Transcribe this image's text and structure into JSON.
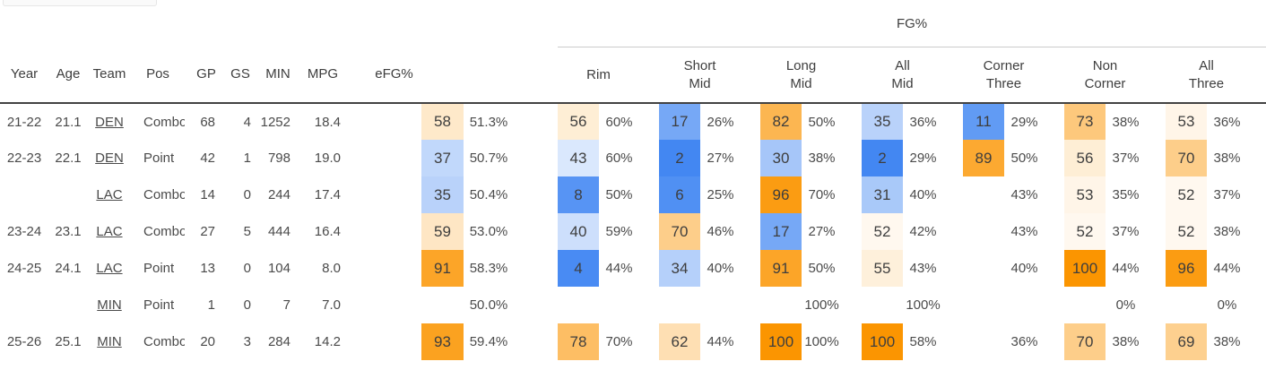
{
  "page": {
    "partial_tab": ""
  },
  "table": {
    "group_header": "FG%",
    "columns": [
      "Year",
      "Age",
      "Team",
      "Pos",
      "GP",
      "GS",
      "MIN",
      "MPG",
      "eFG%"
    ],
    "fg_columns": [
      "Rim",
      "Short\nMid",
      "Long\nMid",
      "All\nMid",
      "Corner\nThree",
      "Non\nCorner",
      "All\nThree"
    ],
    "colors": {
      "percentile_high": "#fb9501",
      "percentile_low": "#3c83f2",
      "percentile_mid": "#ffffff",
      "header_border": "#424242",
      "fg_underline": "#cccccc"
    },
    "rows": [
      {
        "year": "21-22",
        "age": "21.1",
        "team": "DEN",
        "pos": "Combo",
        "gp": "68",
        "gs": "4",
        "min": "1252",
        "mpg": "18.4",
        "efg_pct": 58,
        "efg_val": "51.3%",
        "fg": [
          {
            "pct": 56,
            "val": "60%"
          },
          {
            "pct": 17,
            "val": "26%"
          },
          {
            "pct": 82,
            "val": "50%"
          },
          {
            "pct": 35,
            "val": "36%"
          },
          {
            "pct": 11,
            "val": "29%"
          },
          {
            "pct": 73,
            "val": "38%"
          },
          {
            "pct": 53,
            "val": "36%"
          }
        ]
      },
      {
        "year": "22-23",
        "age": "22.1",
        "team": "DEN",
        "pos": "Point",
        "gp": "42",
        "gs": "1",
        "min": "798",
        "mpg": "19.0",
        "efg_pct": 37,
        "efg_val": "50.7%",
        "fg": [
          {
            "pct": 43,
            "val": "60%"
          },
          {
            "pct": 2,
            "val": "27%"
          },
          {
            "pct": 30,
            "val": "38%"
          },
          {
            "pct": 2,
            "val": "29%"
          },
          {
            "pct": 89,
            "val": "50%"
          },
          {
            "pct": 56,
            "val": "37%"
          },
          {
            "pct": 70,
            "val": "38%"
          }
        ]
      },
      {
        "year": "",
        "age": "",
        "team": "LAC",
        "pos": "Combo",
        "gp": "14",
        "gs": "0",
        "min": "244",
        "mpg": "17.4",
        "efg_pct": 35,
        "efg_val": "50.4%",
        "fg": [
          {
            "pct": 8,
            "val": "50%"
          },
          {
            "pct": 6,
            "val": "25%"
          },
          {
            "pct": 96,
            "val": "70%"
          },
          {
            "pct": 31,
            "val": "40%"
          },
          {
            "pct": null,
            "val": "43%"
          },
          {
            "pct": 53,
            "val": "35%"
          },
          {
            "pct": 52,
            "val": "37%"
          }
        ]
      },
      {
        "year": "23-24",
        "age": "23.1",
        "team": "LAC",
        "pos": "Combo",
        "gp": "27",
        "gs": "5",
        "min": "444",
        "mpg": "16.4",
        "efg_pct": 59,
        "efg_val": "53.0%",
        "fg": [
          {
            "pct": 40,
            "val": "59%"
          },
          {
            "pct": 70,
            "val": "46%"
          },
          {
            "pct": 17,
            "val": "27%"
          },
          {
            "pct": 52,
            "val": "42%"
          },
          {
            "pct": null,
            "val": "43%"
          },
          {
            "pct": 52,
            "val": "37%"
          },
          {
            "pct": 52,
            "val": "38%"
          }
        ]
      },
      {
        "year": "24-25",
        "age": "24.1",
        "team": "LAC",
        "pos": "Point",
        "gp": "13",
        "gs": "0",
        "min": "104",
        "mpg": "8.0",
        "efg_pct": 91,
        "efg_val": "58.3%",
        "fg": [
          {
            "pct": 4,
            "val": "44%"
          },
          {
            "pct": 34,
            "val": "40%"
          },
          {
            "pct": 91,
            "val": "50%"
          },
          {
            "pct": 55,
            "val": "43%"
          },
          {
            "pct": null,
            "val": "40%"
          },
          {
            "pct": 100,
            "val": "44%"
          },
          {
            "pct": 96,
            "val": "44%"
          }
        ]
      },
      {
        "year": "",
        "age": "",
        "team": "MIN",
        "pos": "Point",
        "gp": "1",
        "gs": "0",
        "min": "7",
        "mpg": "7.0",
        "efg_pct": null,
        "efg_val": "50.0%",
        "fg": [
          {
            "pct": null,
            "val": ""
          },
          {
            "pct": null,
            "val": ""
          },
          {
            "pct": null,
            "val": "100%"
          },
          {
            "pct": null,
            "val": "100%"
          },
          {
            "pct": null,
            "val": ""
          },
          {
            "pct": null,
            "val": "0%"
          },
          {
            "pct": null,
            "val": "0%"
          }
        ]
      },
      {
        "year": "25-26",
        "age": "25.1",
        "team": "MIN",
        "pos": "Combo",
        "gp": "20",
        "gs": "3",
        "min": "284",
        "mpg": "14.2",
        "efg_pct": 93,
        "efg_val": "59.4%",
        "fg": [
          {
            "pct": 78,
            "val": "70%"
          },
          {
            "pct": 62,
            "val": "44%"
          },
          {
            "pct": 100,
            "val": "100%"
          },
          {
            "pct": 100,
            "val": "58%"
          },
          {
            "pct": null,
            "val": "36%"
          },
          {
            "pct": 70,
            "val": "38%"
          },
          {
            "pct": 69,
            "val": "38%"
          }
        ]
      }
    ]
  }
}
